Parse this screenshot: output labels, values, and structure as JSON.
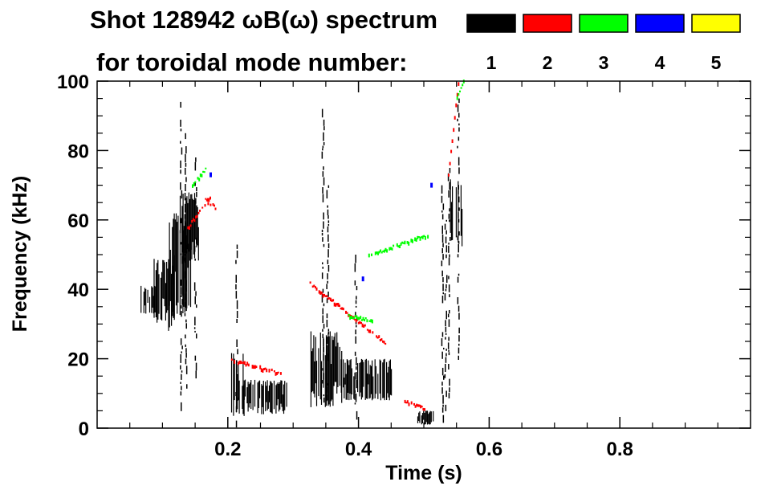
{
  "chart_data": {
    "type": "heatmap",
    "title_line1": "Shot 128942 ωB(ω) spectrum",
    "title_line2": "for toroidal mode number:",
    "xlabel": "Time (s)",
    "ylabel": "Frequency (kHz)",
    "xlim": [
      0.0,
      1.0
    ],
    "ylim": [
      0,
      100
    ],
    "x_ticks": [
      0.2,
      0.4,
      0.6,
      0.8
    ],
    "x_tick_labels": [
      "0.2",
      "0.4",
      "0.6",
      "0.8"
    ],
    "y_ticks": [
      0,
      20,
      40,
      60,
      80,
      100
    ],
    "y_tick_labels": [
      "0",
      "20",
      "40",
      "60",
      "80",
      "100"
    ],
    "legend": [
      {
        "label": "1",
        "color": "#000000"
      },
      {
        "label": "2",
        "color": "#ff0000"
      },
      {
        "label": "3",
        "color": "#00ff00"
      },
      {
        "label": "4",
        "color": "#0000ff"
      },
      {
        "label": "5",
        "color": "#ffff00"
      }
    ],
    "series": [
      {
        "mode": 1,
        "color": "#000000",
        "blobs": [
          {
            "t": [
              0.065,
              0.09
            ],
            "f": [
              33,
              41
            ]
          },
          {
            "t": [
              0.085,
              0.12
            ],
            "f": [
              28,
              50
            ]
          },
          {
            "t": [
              0.11,
              0.145
            ],
            "f": [
              32,
              62
            ]
          },
          {
            "t": [
              0.125,
              0.155
            ],
            "f": [
              48,
              68
            ]
          },
          {
            "t": [
              0.205,
              0.225
            ],
            "f": [
              3,
              22
            ]
          },
          {
            "t": [
              0.22,
              0.29
            ],
            "f": [
              4,
              14
            ]
          },
          {
            "t": [
              0.325,
              0.375
            ],
            "f": [
              6,
              28
            ]
          },
          {
            "t": [
              0.37,
              0.45
            ],
            "f": [
              8,
              20
            ]
          },
          {
            "t": [
              0.49,
              0.515
            ],
            "f": [
              1,
              5
            ]
          },
          {
            "t": [
              0.54,
              0.56
            ],
            "f": [
              52,
              72
            ]
          }
        ],
        "streaks": [
          {
            "t": 0.128,
            "f": [
              5,
              94
            ]
          },
          {
            "t": 0.135,
            "f": [
              10,
              85
            ]
          },
          {
            "t": 0.15,
            "f": [
              15,
              78
            ]
          },
          {
            "t": 0.213,
            "f": [
              2,
              55
            ]
          },
          {
            "t": 0.345,
            "f": [
              5,
              92
            ]
          },
          {
            "t": 0.352,
            "f": [
              8,
              70
            ]
          },
          {
            "t": 0.395,
            "f": [
              4,
              50
            ]
          },
          {
            "t": 0.528,
            "f": [
              2,
              70
            ]
          },
          {
            "t": 0.533,
            "f": [
              5,
              60
            ]
          },
          {
            "t": 0.538,
            "f": [
              10,
              75
            ]
          },
          {
            "t": 0.552,
            "f": [
              20,
              95
            ]
          }
        ]
      },
      {
        "mode": 2,
        "color": "#ff0000",
        "ridges": [
          {
            "t": [
              0.138,
              0.172
            ],
            "f": [
              58,
              67
            ]
          },
          {
            "t": [
              0.165,
              0.18
            ],
            "f": [
              66,
              64
            ]
          },
          {
            "t": [
              0.205,
              0.28
            ],
            "f": [
              20,
              16
            ]
          },
          {
            "t": [
              0.325,
              0.44
            ],
            "f": [
              42,
              25
            ]
          },
          {
            "t": [
              0.47,
              0.5
            ],
            "f": [
              8,
              6
            ]
          },
          {
            "t": [
              0.535,
              0.552
            ],
            "f": [
              70,
              100
            ]
          }
        ]
      },
      {
        "mode": 3,
        "color": "#00ff00",
        "ridges": [
          {
            "t": [
              0.145,
              0.165
            ],
            "f": [
              70,
              75
            ]
          },
          {
            "t": [
              0.415,
              0.505
            ],
            "f": [
              50,
              56
            ]
          },
          {
            "t": [
              0.38,
              0.42
            ],
            "f": [
              33,
              31
            ]
          },
          {
            "t": [
              0.55,
              0.56
            ],
            "f": [
              96,
              100
            ]
          }
        ]
      },
      {
        "mode": 4,
        "color": "#0000ff",
        "points": [
          {
            "t": 0.172,
            "f": 73
          },
          {
            "t": 0.405,
            "f": 43
          },
          {
            "t": 0.51,
            "f": 70
          }
        ]
      }
    ]
  }
}
